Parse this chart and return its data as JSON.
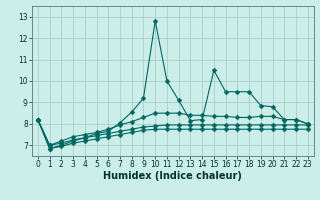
{
  "title": "",
  "xlabel": "Humidex (Indice chaleur)",
  "bg_color": "#cceee8",
  "grid_color": "#aacccc",
  "line_color": "#006660",
  "xlim": [
    -0.5,
    23.5
  ],
  "ylim": [
    6.5,
    13.5
  ],
  "yticks": [
    7,
    8,
    9,
    10,
    11,
    12,
    13
  ],
  "xticks": [
    0,
    1,
    2,
    3,
    4,
    5,
    6,
    7,
    8,
    9,
    10,
    11,
    12,
    13,
    14,
    15,
    16,
    17,
    18,
    19,
    20,
    21,
    22,
    23
  ],
  "series": [
    [
      8.2,
      6.85,
      7.0,
      7.2,
      7.35,
      7.55,
      7.65,
      8.05,
      8.55,
      9.2,
      12.8,
      10.0,
      9.1,
      8.15,
      8.2,
      10.5,
      9.5,
      9.5,
      9.5,
      8.85,
      8.8,
      8.2,
      8.2,
      8.0
    ],
    [
      8.2,
      7.0,
      7.2,
      7.4,
      7.5,
      7.6,
      7.75,
      7.95,
      8.1,
      8.3,
      8.5,
      8.5,
      8.5,
      8.4,
      8.4,
      8.35,
      8.35,
      8.3,
      8.3,
      8.35,
      8.35,
      8.2,
      8.2,
      8.0
    ],
    [
      8.2,
      7.0,
      7.1,
      7.25,
      7.35,
      7.45,
      7.55,
      7.65,
      7.75,
      7.85,
      7.9,
      7.95,
      7.95,
      7.95,
      7.95,
      7.95,
      7.95,
      7.95,
      7.95,
      7.95,
      7.95,
      7.95,
      7.95,
      7.95
    ],
    [
      8.2,
      6.85,
      6.95,
      7.1,
      7.2,
      7.3,
      7.4,
      7.5,
      7.6,
      7.7,
      7.75,
      7.75,
      7.75,
      7.75,
      7.75,
      7.75,
      7.75,
      7.75,
      7.75,
      7.75,
      7.75,
      7.75,
      7.75,
      7.75
    ]
  ],
  "xlabel_fontsize": 7,
  "tick_fontsize": 5.5,
  "marker_size": 2.5
}
